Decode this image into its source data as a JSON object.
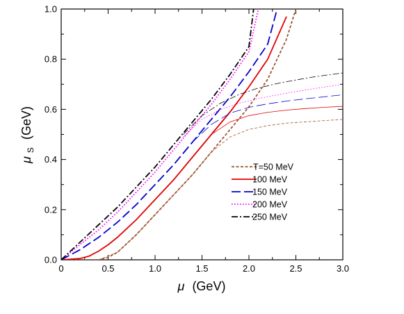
{
  "chart_data": {
    "type": "line",
    "xlabel": {
      "symbol": "μ",
      "unit": "(GeV)"
    },
    "ylabel": {
      "symbol": "μ",
      "subscript": "S",
      "unit": "(GeV)"
    },
    "xlim": [
      0,
      3.0
    ],
    "ylim": [
      0,
      1.0
    ],
    "xticks": [
      0.0,
      0.5,
      1.0,
      1.5,
      2.0,
      2.5,
      3.0
    ],
    "xtick_labels": [
      "0",
      "0.5",
      "1.0",
      "1.5",
      "2.0",
      "2.5",
      "3.0"
    ],
    "yticks": [
      0.0,
      0.2,
      0.4,
      0.6,
      0.8,
      1.0
    ],
    "ytick_labels": [
      "0.0",
      "0.2",
      "0.4",
      "0.6",
      "0.8",
      "1.0"
    ],
    "grid": false,
    "legend_position": "center-right",
    "series": [
      {
        "name": "T=50 MeV",
        "color": "#a0522d",
        "dash": "short-dash",
        "thick": {
          "x": [
            0,
            0.4,
            0.5,
            0.6,
            0.8,
            1.0,
            1.2,
            1.4,
            1.6,
            1.8,
            2.0,
            2.2,
            2.4,
            2.5
          ],
          "y": [
            0,
            0.0,
            0.01,
            0.03,
            0.1,
            0.18,
            0.26,
            0.34,
            0.43,
            0.52,
            0.61,
            0.72,
            0.88,
            1.0
          ]
        },
        "thin": {
          "x": [
            0.4,
            0.6,
            0.8,
            1.0,
            1.2,
            1.4,
            1.6,
            1.8,
            2.0,
            2.2,
            2.4,
            2.6,
            2.8,
            3.0
          ],
          "y": [
            0.0,
            0.03,
            0.1,
            0.18,
            0.26,
            0.34,
            0.43,
            0.49,
            0.52,
            0.535,
            0.545,
            0.55,
            0.555,
            0.56
          ]
        }
      },
      {
        "name": "100 MeV",
        "color": "#e00000",
        "dash": "solid",
        "thick": {
          "x": [
            0,
            0.2,
            0.3,
            0.4,
            0.5,
            0.6,
            0.8,
            1.0,
            1.2,
            1.4,
            1.6,
            1.8,
            2.0,
            2.2,
            2.4
          ],
          "y": [
            0,
            0.005,
            0.015,
            0.035,
            0.06,
            0.09,
            0.16,
            0.24,
            0.32,
            0.41,
            0.5,
            0.59,
            0.69,
            0.8,
            0.97
          ]
        },
        "thin": {
          "x": [
            1.4,
            1.6,
            1.8,
            2.0,
            2.2,
            2.4,
            2.6,
            2.8,
            3.0
          ],
          "y": [
            0.41,
            0.5,
            0.55,
            0.575,
            0.588,
            0.597,
            0.603,
            0.608,
            0.612
          ]
        }
      },
      {
        "name": "150 MeV",
        "color": "#0000d0",
        "dash": "long-dash",
        "thick": {
          "x": [
            0,
            0.1,
            0.2,
            0.4,
            0.6,
            0.8,
            1.0,
            1.2,
            1.4,
            1.6,
            1.8,
            2.0,
            2.2,
            2.3
          ],
          "y": [
            0,
            0.02,
            0.04,
            0.09,
            0.15,
            0.22,
            0.3,
            0.38,
            0.47,
            0.56,
            0.65,
            0.75,
            0.86,
            1.0
          ]
        },
        "thin": {
          "x": [
            1.4,
            1.6,
            1.8,
            2.0,
            2.2,
            2.4,
            2.6,
            2.8,
            3.0
          ],
          "y": [
            0.47,
            0.54,
            0.585,
            0.608,
            0.622,
            0.633,
            0.642,
            0.65,
            0.658
          ]
        }
      },
      {
        "name": "200 MeV",
        "color": "#ff00ff",
        "dash": "dotted",
        "thick": {
          "x": [
            0,
            0.1,
            0.2,
            0.4,
            0.6,
            0.8,
            1.0,
            1.2,
            1.4,
            1.6,
            1.8,
            2.0,
            2.1
          ],
          "y": [
            0,
            0.03,
            0.06,
            0.12,
            0.19,
            0.27,
            0.35,
            0.44,
            0.53,
            0.62,
            0.72,
            0.83,
            1.0
          ]
        },
        "thin": {
          "x": [
            1.3,
            1.5,
            1.7,
            1.9,
            2.1,
            2.3,
            2.5,
            2.7,
            3.0
          ],
          "y": [
            0.49,
            0.56,
            0.6,
            0.625,
            0.643,
            0.658,
            0.671,
            0.683,
            0.7
          ]
        }
      },
      {
        "name": "250 MeV",
        "color": "#000000",
        "dash": "dash-dot",
        "thick": {
          "x": [
            0,
            0.1,
            0.2,
            0.4,
            0.6,
            0.8,
            1.0,
            1.2,
            1.4,
            1.6,
            1.8,
            2.0,
            2.05
          ],
          "y": [
            0,
            0.035,
            0.07,
            0.14,
            0.21,
            0.29,
            0.37,
            0.46,
            0.55,
            0.64,
            0.74,
            0.85,
            1.0
          ]
        },
        "thin": {
          "x": [
            1.3,
            1.5,
            1.7,
            1.9,
            2.1,
            2.3,
            2.5,
            2.7,
            3.0
          ],
          "y": [
            0.5,
            0.575,
            0.625,
            0.66,
            0.685,
            0.703,
            0.717,
            0.73,
            0.745
          ]
        }
      }
    ]
  }
}
